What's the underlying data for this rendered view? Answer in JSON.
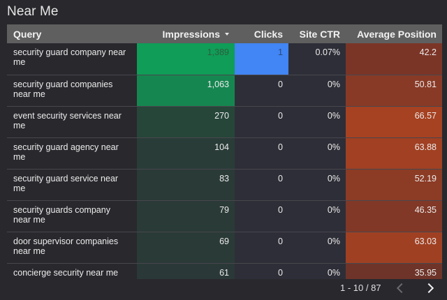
{
  "title": "Near Me",
  "table": {
    "columns": [
      {
        "label": "Query"
      },
      {
        "label": "Impressions",
        "sorted": "desc",
        "sort_icon": "sort-desc-icon"
      },
      {
        "label": "Clicks"
      },
      {
        "label": "Site CTR"
      },
      {
        "label": "Average Position"
      }
    ],
    "rows": [
      {
        "query": "security guard company near me",
        "impressions": "1,389",
        "clicks": "1",
        "ctr": "0.07%",
        "avg_position": "42.2",
        "imp_color": "#0f9d58",
        "pos_color": "#7b3527",
        "click_color": "#4285f4"
      },
      {
        "query": "security guard companies near me",
        "impressions": "1,063",
        "clicks": "0",
        "ctr": "0%",
        "avg_position": "50.81",
        "imp_color": "#168650",
        "pos_color": "#893a26",
        "click_color": "#2e2e38"
      },
      {
        "query": "event security services near me",
        "impressions": "270",
        "clicks": "0",
        "ctr": "0%",
        "avg_position": "66.57",
        "imp_color": "#26463a",
        "pos_color": "#a64121",
        "click_color": "#2e2e38"
      },
      {
        "query": "security guard agency near me",
        "impressions": "104",
        "clicks": "0",
        "ctr": "0%",
        "avg_position": "63.88",
        "imp_color": "#293c38",
        "pos_color": "#a14022",
        "click_color": "#2e2e38"
      },
      {
        "query": "security guard service near me",
        "impressions": "83",
        "clicks": "0",
        "ctr": "0%",
        "avg_position": "52.19",
        "imp_color": "#2a3a37",
        "pos_color": "#8c3b25",
        "click_color": "#2e2e38"
      },
      {
        "query": "security guards company near me",
        "impressions": "79",
        "clicks": "0",
        "ctr": "0%",
        "avg_position": "46.35",
        "imp_color": "#2a3a37",
        "pos_color": "#823827",
        "click_color": "#2e2e38"
      },
      {
        "query": "door supervisor companies near me",
        "impressions": "69",
        "clicks": "0",
        "ctr": "0%",
        "avg_position": "63.03",
        "imp_color": "#2a3a37",
        "pos_color": "#a04022",
        "click_color": "#2e2e38"
      },
      {
        "query": "concierge security near me",
        "impressions": "61",
        "clicks": "0",
        "ctr": "0%",
        "avg_position": "35.95",
        "imp_color": "#2a3937",
        "pos_color": "#6e3429",
        "click_color": "#2e2e38"
      }
    ]
  },
  "pagination": {
    "range_text": "1 - 10 / 87",
    "prev_icon": "chevron-left-icon",
    "next_icon": "chevron-right-icon"
  }
}
